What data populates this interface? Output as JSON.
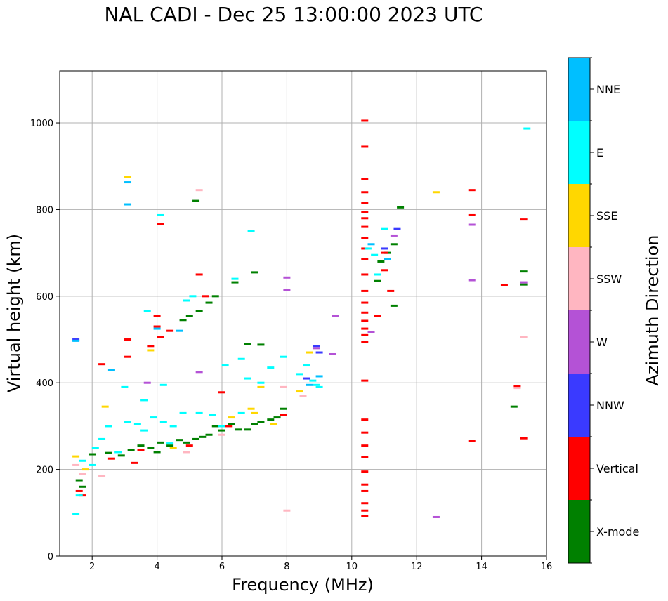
{
  "chart_data": {
    "type": "scatter",
    "title": "NAL CADI - Dec 25 13:00:00 2023 UTC",
    "xlabel": "Frequency (MHz)",
    "ylabel": "Virtual height (km)",
    "xlim": [
      1.0,
      16.0
    ],
    "ylim": [
      0,
      1120
    ],
    "xticks": [
      2,
      4,
      6,
      8,
      10,
      12,
      14,
      16
    ],
    "yticks": [
      0,
      200,
      400,
      600,
      800,
      1000
    ],
    "grid": true,
    "colorbar": {
      "label": "Azimuth Direction",
      "categories": [
        "X-mode",
        "Vertical",
        "NNW",
        "W",
        "SSW",
        "SSE",
        "E",
        "NNE"
      ],
      "colors": [
        "#008000",
        "#ff0000",
        "#3a3aff",
        "#b452d6",
        "#ffb6c1",
        "#ffd700",
        "#00ffff",
        "#00bfff"
      ]
    },
    "series": [
      {
        "name": "X-mode",
        "points": [
          [
            1.6,
            175
          ],
          [
            1.7,
            160
          ],
          [
            2.0,
            235
          ],
          [
            2.5,
            238
          ],
          [
            2.9,
            232
          ],
          [
            3.2,
            245
          ],
          [
            3.5,
            255
          ],
          [
            3.8,
            250
          ],
          [
            4.0,
            240
          ],
          [
            4.1,
            262
          ],
          [
            4.4,
            255
          ],
          [
            4.7,
            268
          ],
          [
            4.9,
            262
          ],
          [
            5.2,
            270
          ],
          [
            5.4,
            275
          ],
          [
            5.6,
            280
          ],
          [
            5.8,
            300
          ],
          [
            6.0,
            290
          ],
          [
            6.3,
            305
          ],
          [
            6.5,
            292
          ],
          [
            6.8,
            292
          ],
          [
            7.0,
            305
          ],
          [
            7.2,
            310
          ],
          [
            7.5,
            315
          ],
          [
            7.7,
            320
          ],
          [
            7.9,
            340
          ],
          [
            6.8,
            490
          ],
          [
            7.2,
            488
          ],
          [
            5.0,
            555
          ],
          [
            5.3,
            565
          ],
          [
            5.6,
            585
          ],
          [
            5.8,
            600
          ],
          [
            4.8,
            545
          ],
          [
            5.2,
            820
          ],
          [
            6.4,
            632
          ],
          [
            7.0,
            655
          ],
          [
            10.8,
            635
          ],
          [
            10.9,
            680
          ],
          [
            11.1,
            700
          ],
          [
            11.3,
            720
          ],
          [
            11.5,
            805
          ],
          [
            15.3,
            657
          ],
          [
            15.3,
            627
          ],
          [
            15.0,
            345
          ],
          [
            11.3,
            578
          ]
        ]
      },
      {
        "name": "Vertical",
        "points": [
          [
            1.6,
            150
          ],
          [
            1.7,
            140
          ],
          [
            2.3,
            443
          ],
          [
            2.6,
            225
          ],
          [
            3.1,
            460
          ],
          [
            3.3,
            215
          ],
          [
            3.5,
            245
          ],
          [
            3.8,
            485
          ],
          [
            4.1,
            505
          ],
          [
            4.4,
            520
          ],
          [
            4.0,
            530
          ],
          [
            4.0,
            555
          ],
          [
            4.1,
            767
          ],
          [
            3.1,
            500
          ],
          [
            5.0,
            255
          ],
          [
            5.3,
            650
          ],
          [
            5.5,
            600
          ],
          [
            6.0,
            378
          ],
          [
            6.2,
            300
          ],
          [
            10.4,
            1005
          ],
          [
            10.4,
            945
          ],
          [
            10.4,
            870
          ],
          [
            10.4,
            840
          ],
          [
            10.4,
            815
          ],
          [
            10.4,
            795
          ],
          [
            10.4,
            780
          ],
          [
            10.4,
            760
          ],
          [
            10.4,
            735
          ],
          [
            10.4,
            710
          ],
          [
            10.4,
            685
          ],
          [
            10.4,
            650
          ],
          [
            10.4,
            612
          ],
          [
            10.4,
            585
          ],
          [
            10.4,
            562
          ],
          [
            10.4,
            543
          ],
          [
            10.4,
            525
          ],
          [
            10.4,
            510
          ],
          [
            10.4,
            495
          ],
          [
            10.4,
            405
          ],
          [
            10.4,
            315
          ],
          [
            10.4,
            285
          ],
          [
            10.4,
            255
          ],
          [
            10.4,
            228
          ],
          [
            10.4,
            195
          ],
          [
            10.4,
            165
          ],
          [
            10.4,
            150
          ],
          [
            10.4,
            122
          ],
          [
            10.4,
            105
          ],
          [
            10.4,
            93
          ],
          [
            10.8,
            555
          ],
          [
            11.0,
            700
          ],
          [
            11.2,
            612
          ],
          [
            11.0,
            660
          ],
          [
            13.7,
            845
          ],
          [
            13.7,
            787
          ],
          [
            14.7,
            625
          ],
          [
            15.3,
            777
          ],
          [
            15.3,
            272
          ],
          [
            13.7,
            265
          ],
          [
            15.1,
            392
          ],
          [
            7.9,
            325
          ]
        ]
      },
      {
        "name": "NNW",
        "points": [
          [
            1.5,
            500
          ],
          [
            8.6,
            410
          ],
          [
            8.9,
            485
          ],
          [
            9.0,
            470
          ],
          [
            11.4,
            755
          ],
          [
            11.0,
            710
          ]
        ]
      },
      {
        "name": "W",
        "points": [
          [
            3.7,
            400
          ],
          [
            5.3,
            425
          ],
          [
            8.0,
            643
          ],
          [
            8.0,
            615
          ],
          [
            9.5,
            555
          ],
          [
            9.4,
            466
          ],
          [
            10.6,
            517
          ],
          [
            13.7,
            765
          ],
          [
            13.7,
            637
          ],
          [
            12.6,
            90
          ],
          [
            15.3,
            632
          ],
          [
            8.9,
            480
          ],
          [
            11.3,
            740
          ]
        ]
      },
      {
        "name": "SSW",
        "points": [
          [
            1.5,
            210
          ],
          [
            1.7,
            190
          ],
          [
            2.3,
            185
          ],
          [
            4.9,
            240
          ],
          [
            5.3,
            845
          ],
          [
            8.0,
            105
          ],
          [
            6.0,
            280
          ],
          [
            7.9,
            390
          ],
          [
            15.3,
            505
          ],
          [
            15.1,
            388
          ],
          [
            8.5,
            370
          ]
        ]
      },
      {
        "name": "SSE",
        "points": [
          [
            1.5,
            230
          ],
          [
            1.8,
            200
          ],
          [
            2.4,
            345
          ],
          [
            3.1,
            875
          ],
          [
            3.8,
            475
          ],
          [
            6.3,
            320
          ],
          [
            6.9,
            340
          ],
          [
            7.2,
            390
          ],
          [
            8.4,
            380
          ],
          [
            8.7,
            470
          ],
          [
            12.6,
            840
          ],
          [
            7.0,
            330
          ],
          [
            7.6,
            305
          ],
          [
            4.5,
            250
          ]
        ]
      },
      {
        "name": "E",
        "points": [
          [
            1.5,
            97
          ],
          [
            1.6,
            140
          ],
          [
            1.7,
            220
          ],
          [
            2.0,
            210
          ],
          [
            2.1,
            250
          ],
          [
            2.3,
            270
          ],
          [
            2.5,
            300
          ],
          [
            2.8,
            240
          ],
          [
            3.1,
            310
          ],
          [
            3.4,
            305
          ],
          [
            3.6,
            290
          ],
          [
            3.7,
            565
          ],
          [
            3.9,
            320
          ],
          [
            4.2,
            310
          ],
          [
            4.5,
            300
          ],
          [
            4.2,
            395
          ],
          [
            4.4,
            260
          ],
          [
            4.8,
            330
          ],
          [
            5.1,
            600
          ],
          [
            5.3,
            330
          ],
          [
            5.7,
            325
          ],
          [
            6.0,
            300
          ],
          [
            6.1,
            440
          ],
          [
            6.4,
            640
          ],
          [
            6.6,
            330
          ],
          [
            6.8,
            410
          ],
          [
            6.6,
            455
          ],
          [
            7.2,
            400
          ],
          [
            7.5,
            435
          ],
          [
            7.9,
            460
          ],
          [
            8.4,
            420
          ],
          [
            8.6,
            440
          ],
          [
            8.8,
            405
          ],
          [
            8.9,
            395
          ],
          [
            9.0,
            390
          ],
          [
            10.5,
            710
          ],
          [
            10.7,
            695
          ],
          [
            10.8,
            650
          ],
          [
            11.0,
            755
          ],
          [
            15.4,
            987
          ],
          [
            4.1,
            787
          ],
          [
            6.9,
            750
          ],
          [
            3.6,
            360
          ],
          [
            3.0,
            390
          ],
          [
            4.9,
            590
          ]
        ]
      },
      {
        "name": "NNE",
        "points": [
          [
            1.5,
            497
          ],
          [
            2.6,
            430
          ],
          [
            3.1,
            863
          ],
          [
            3.1,
            812
          ],
          [
            4.0,
            525
          ],
          [
            8.7,
            395
          ],
          [
            9.0,
            415
          ],
          [
            10.6,
            720
          ],
          [
            11.1,
            685
          ],
          [
            4.7,
            520
          ]
        ]
      }
    ]
  }
}
